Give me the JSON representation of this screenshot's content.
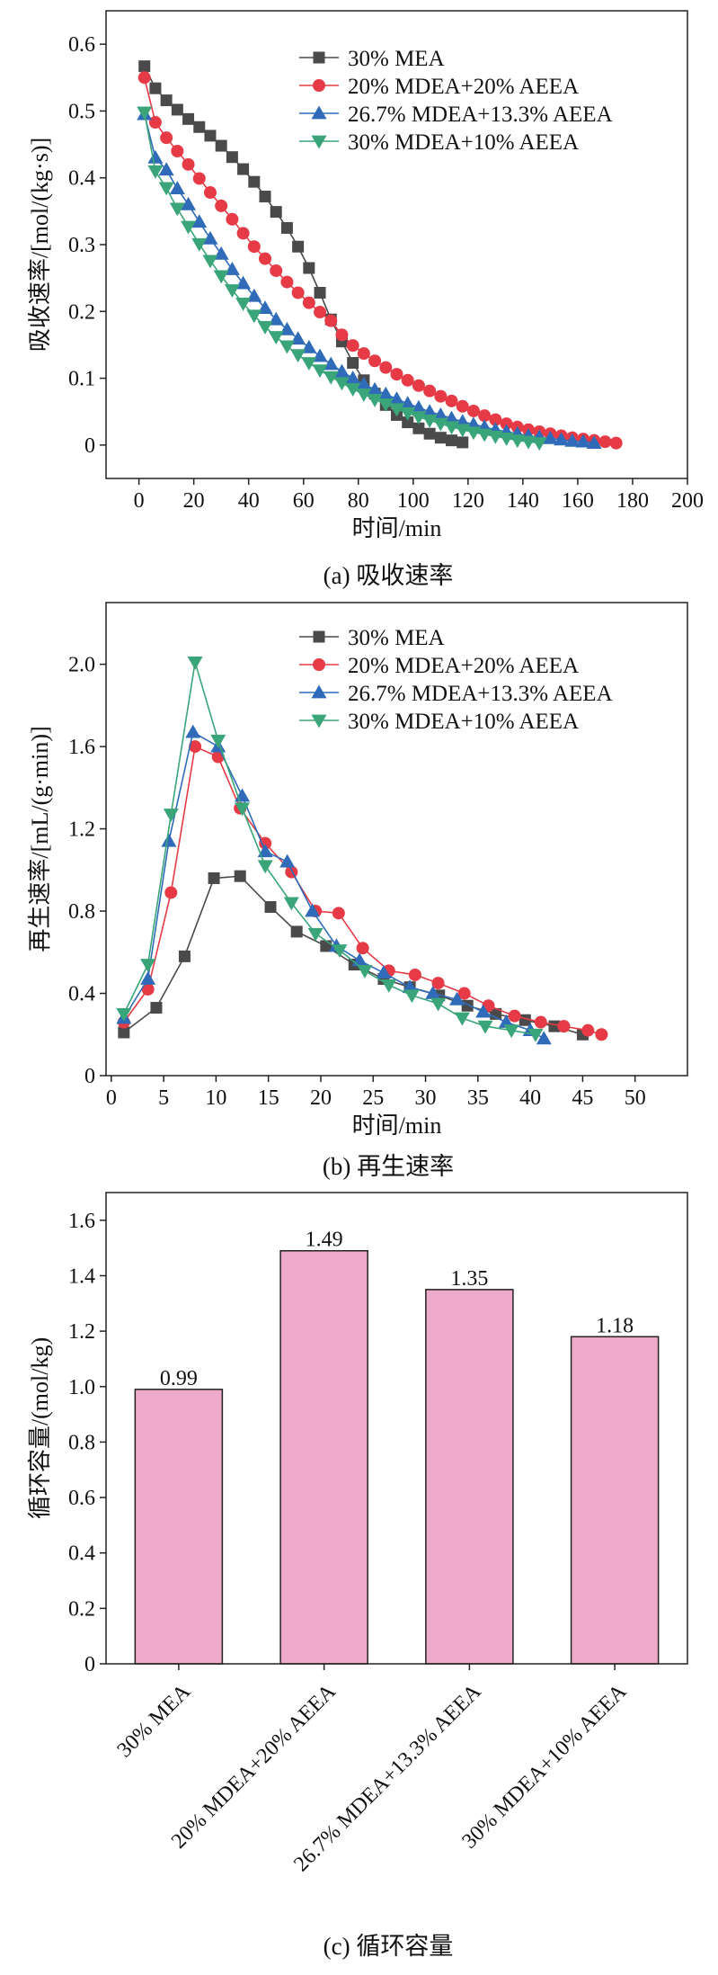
{
  "colors": {
    "30% MEA": "#4a4a4a",
    "20% MDEA+20% AEEA": "#e63b46",
    "26.7% MDEA+13.3% AEEA": "#2f6bb8",
    "30% MDEA+10% AEEA": "#3aa579",
    "bar_fill": "#eeaacb"
  },
  "captions": [
    "(a) 吸收速率",
    "(b) 再生速率",
    "(c) 循环容量"
  ],
  "chart_data": [
    {
      "type": "line",
      "xlabel": "时间/min",
      "ylabel": "吸收速率/[mol/(kg·s)]",
      "xlim": [
        -12,
        200
      ],
      "ylim": [
        -0.05,
        0.65
      ],
      "xticks": [
        0,
        20,
        40,
        60,
        80,
        100,
        120,
        140,
        160,
        180,
        200
      ],
      "yticks": [
        0,
        0.1,
        0.2,
        0.3,
        0.4,
        0.5,
        0.6
      ],
      "ytick_labels": [
        "0",
        "0.1",
        "0.2",
        "0.3",
        "0.4",
        "0.5",
        "0.6"
      ],
      "legend_position": "top-right",
      "series": [
        {
          "name": "30% MEA",
          "marker": "square",
          "x": [
            2,
            6,
            10,
            14,
            18,
            22,
            26,
            30,
            34,
            38,
            42,
            46,
            50,
            54,
            58,
            62,
            66,
            70,
            74,
            78,
            82,
            86,
            90,
            94,
            98,
            102,
            106,
            110,
            114,
            118
          ],
          "y": [
            0.567,
            0.534,
            0.516,
            0.502,
            0.488,
            0.476,
            0.463,
            0.448,
            0.431,
            0.413,
            0.394,
            0.372,
            0.349,
            0.325,
            0.297,
            0.265,
            0.228,
            0.188,
            0.155,
            0.123,
            0.097,
            0.077,
            0.06,
            0.045,
            0.034,
            0.025,
            0.017,
            0.011,
            0.007,
            0.004
          ]
        },
        {
          "name": "20% MDEA+20% AEEA",
          "marker": "circle",
          "x": [
            2,
            6,
            10,
            14,
            18,
            22,
            26,
            30,
            34,
            38,
            42,
            46,
            50,
            54,
            58,
            62,
            66,
            70,
            74,
            78,
            82,
            86,
            90,
            94,
            98,
            102,
            106,
            110,
            114,
            118,
            122,
            126,
            130,
            134,
            138,
            142,
            146,
            150,
            154,
            158,
            162,
            166,
            170,
            174
          ],
          "y": [
            0.55,
            0.483,
            0.46,
            0.44,
            0.42,
            0.399,
            0.378,
            0.358,
            0.338,
            0.317,
            0.297,
            0.279,
            0.261,
            0.244,
            0.228,
            0.213,
            0.199,
            0.186,
            0.165,
            0.149,
            0.137,
            0.126,
            0.116,
            0.106,
            0.097,
            0.089,
            0.081,
            0.073,
            0.066,
            0.058,
            0.051,
            0.044,
            0.038,
            0.032,
            0.027,
            0.023,
            0.02,
            0.017,
            0.014,
            0.011,
            0.009,
            0.007,
            0.005,
            0.003
          ]
        },
        {
          "name": "26.7% MDEA+13.3% AEEA",
          "marker": "triangle-up",
          "x": [
            2,
            6,
            10,
            14,
            18,
            22,
            26,
            30,
            34,
            38,
            42,
            46,
            50,
            54,
            58,
            62,
            66,
            70,
            74,
            78,
            82,
            86,
            90,
            94,
            98,
            102,
            106,
            110,
            114,
            118,
            122,
            126,
            130,
            134,
            138,
            142,
            146,
            150,
            154,
            158,
            162,
            166
          ],
          "y": [
            0.495,
            0.43,
            0.412,
            0.384,
            0.36,
            0.334,
            0.309,
            0.286,
            0.263,
            0.242,
            0.223,
            0.205,
            0.188,
            0.173,
            0.159,
            0.146,
            0.133,
            0.121,
            0.11,
            0.1,
            0.091,
            0.083,
            0.076,
            0.069,
            0.062,
            0.056,
            0.05,
            0.045,
            0.04,
            0.035,
            0.031,
            0.027,
            0.023,
            0.02,
            0.017,
            0.014,
            0.012,
            0.01,
            0.008,
            0.006,
            0.005,
            0.003
          ]
        },
        {
          "name": "30% MDEA+10% AEEA",
          "marker": "triangle-down",
          "x": [
            2,
            6,
            10,
            14,
            18,
            22,
            26,
            30,
            34,
            38,
            42,
            46,
            50,
            54,
            58,
            62,
            66,
            70,
            74,
            78,
            82,
            86,
            90,
            94,
            98,
            102,
            106,
            110,
            114,
            118,
            122,
            126,
            130,
            134,
            138,
            142,
            146
          ],
          "y": [
            0.498,
            0.41,
            0.385,
            0.354,
            0.327,
            0.301,
            0.276,
            0.253,
            0.232,
            0.212,
            0.194,
            0.177,
            0.162,
            0.148,
            0.135,
            0.123,
            0.112,
            0.102,
            0.093,
            0.084,
            0.076,
            0.068,
            0.061,
            0.054,
            0.048,
            0.042,
            0.037,
            0.032,
            0.027,
            0.023,
            0.019,
            0.016,
            0.013,
            0.01,
            0.007,
            0.005,
            0.003
          ]
        }
      ]
    },
    {
      "type": "line",
      "xlabel": "时间/min",
      "ylabel": "再生速率/[mL/(g·min)]",
      "xlim": [
        -0.5,
        55
      ],
      "ylim": [
        0,
        2.3
      ],
      "xticks": [
        0,
        5,
        10,
        15,
        20,
        25,
        30,
        35,
        40,
        45,
        50
      ],
      "yticks": [
        0,
        0.4,
        0.8,
        1.2,
        1.6,
        2.0
      ],
      "ytick_labels": [
        "0",
        "0.4",
        "0.8",
        "1.2",
        "1.6",
        "2.0"
      ],
      "legend_position": "top-right",
      "series": [
        {
          "name": "30% MEA",
          "marker": "square",
          "x": [
            1.2,
            4.3,
            7.0,
            9.8,
            12.3,
            15.2,
            17.7,
            20.5,
            23.2,
            26.0,
            28.5,
            31.3,
            34.0,
            36.7,
            39.5,
            42.3,
            45.0
          ],
          "y": [
            0.21,
            0.33,
            0.58,
            0.96,
            0.97,
            0.82,
            0.7,
            0.63,
            0.54,
            0.47,
            0.43,
            0.39,
            0.34,
            0.3,
            0.27,
            0.24,
            0.2
          ]
        },
        {
          "name": "20% MDEA+20% AEEA",
          "marker": "circle",
          "x": [
            1.2,
            3.5,
            5.7,
            8.0,
            10.2,
            12.3,
            14.7,
            17.2,
            19.5,
            21.7,
            24.0,
            26.5,
            29.0,
            31.2,
            33.7,
            36.0,
            38.5,
            41.0,
            43.2,
            45.5,
            46.8
          ],
          "y": [
            0.26,
            0.42,
            0.89,
            1.6,
            1.55,
            1.3,
            1.13,
            0.99,
            0.8,
            0.79,
            0.62,
            0.51,
            0.49,
            0.45,
            0.4,
            0.34,
            0.29,
            0.26,
            0.24,
            0.22,
            0.2
          ]
        },
        {
          "name": "26.7% MDEA+13.3% AEEA",
          "marker": "triangle-up",
          "x": [
            1.2,
            3.5,
            5.5,
            7.8,
            10.2,
            12.5,
            14.7,
            16.8,
            19.2,
            21.5,
            23.7,
            26.0,
            28.5,
            30.7,
            33.0,
            35.5,
            37.7,
            40.0,
            41.3
          ],
          "y": [
            0.28,
            0.47,
            1.14,
            1.67,
            1.6,
            1.36,
            1.09,
            1.04,
            0.8,
            0.63,
            0.56,
            0.5,
            0.43,
            0.4,
            0.37,
            0.31,
            0.26,
            0.22,
            0.18
          ]
        },
        {
          "name": "30% MDEA+10% AEEA",
          "marker": "triangle-down",
          "x": [
            1.2,
            3.5,
            5.7,
            8.0,
            10.2,
            12.5,
            14.7,
            17.2,
            19.5,
            21.8,
            24.2,
            26.5,
            28.7,
            31.2,
            33.5,
            35.7,
            38.2,
            40.5
          ],
          "y": [
            0.3,
            0.54,
            1.27,
            2.01,
            1.63,
            1.3,
            1.02,
            0.84,
            0.69,
            0.61,
            0.51,
            0.44,
            0.39,
            0.35,
            0.28,
            0.24,
            0.22,
            0.2
          ]
        }
      ]
    },
    {
      "type": "bar",
      "xlabel": "",
      "ylabel": "循环容量/(mol/kg)",
      "ylim": [
        0,
        1.7
      ],
      "yticks": [
        0,
        0.2,
        0.4,
        0.6,
        0.8,
        1.0,
        1.2,
        1.4,
        1.6
      ],
      "ytick_labels": [
        "0",
        "0.2",
        "0.4",
        "0.6",
        "0.8",
        "1.0",
        "1.2",
        "1.4",
        "1.6"
      ],
      "categories": [
        "30% MEA",
        "20% MDEA+20% AEEA",
        "26.7% MDEA+13.3% AEEA",
        "30% MDEA+10% AEEA"
      ],
      "values": [
        0.99,
        1.49,
        1.35,
        1.18
      ],
      "value_labels": [
        "0.99",
        "1.49",
        "1.35",
        "1.18"
      ]
    }
  ]
}
